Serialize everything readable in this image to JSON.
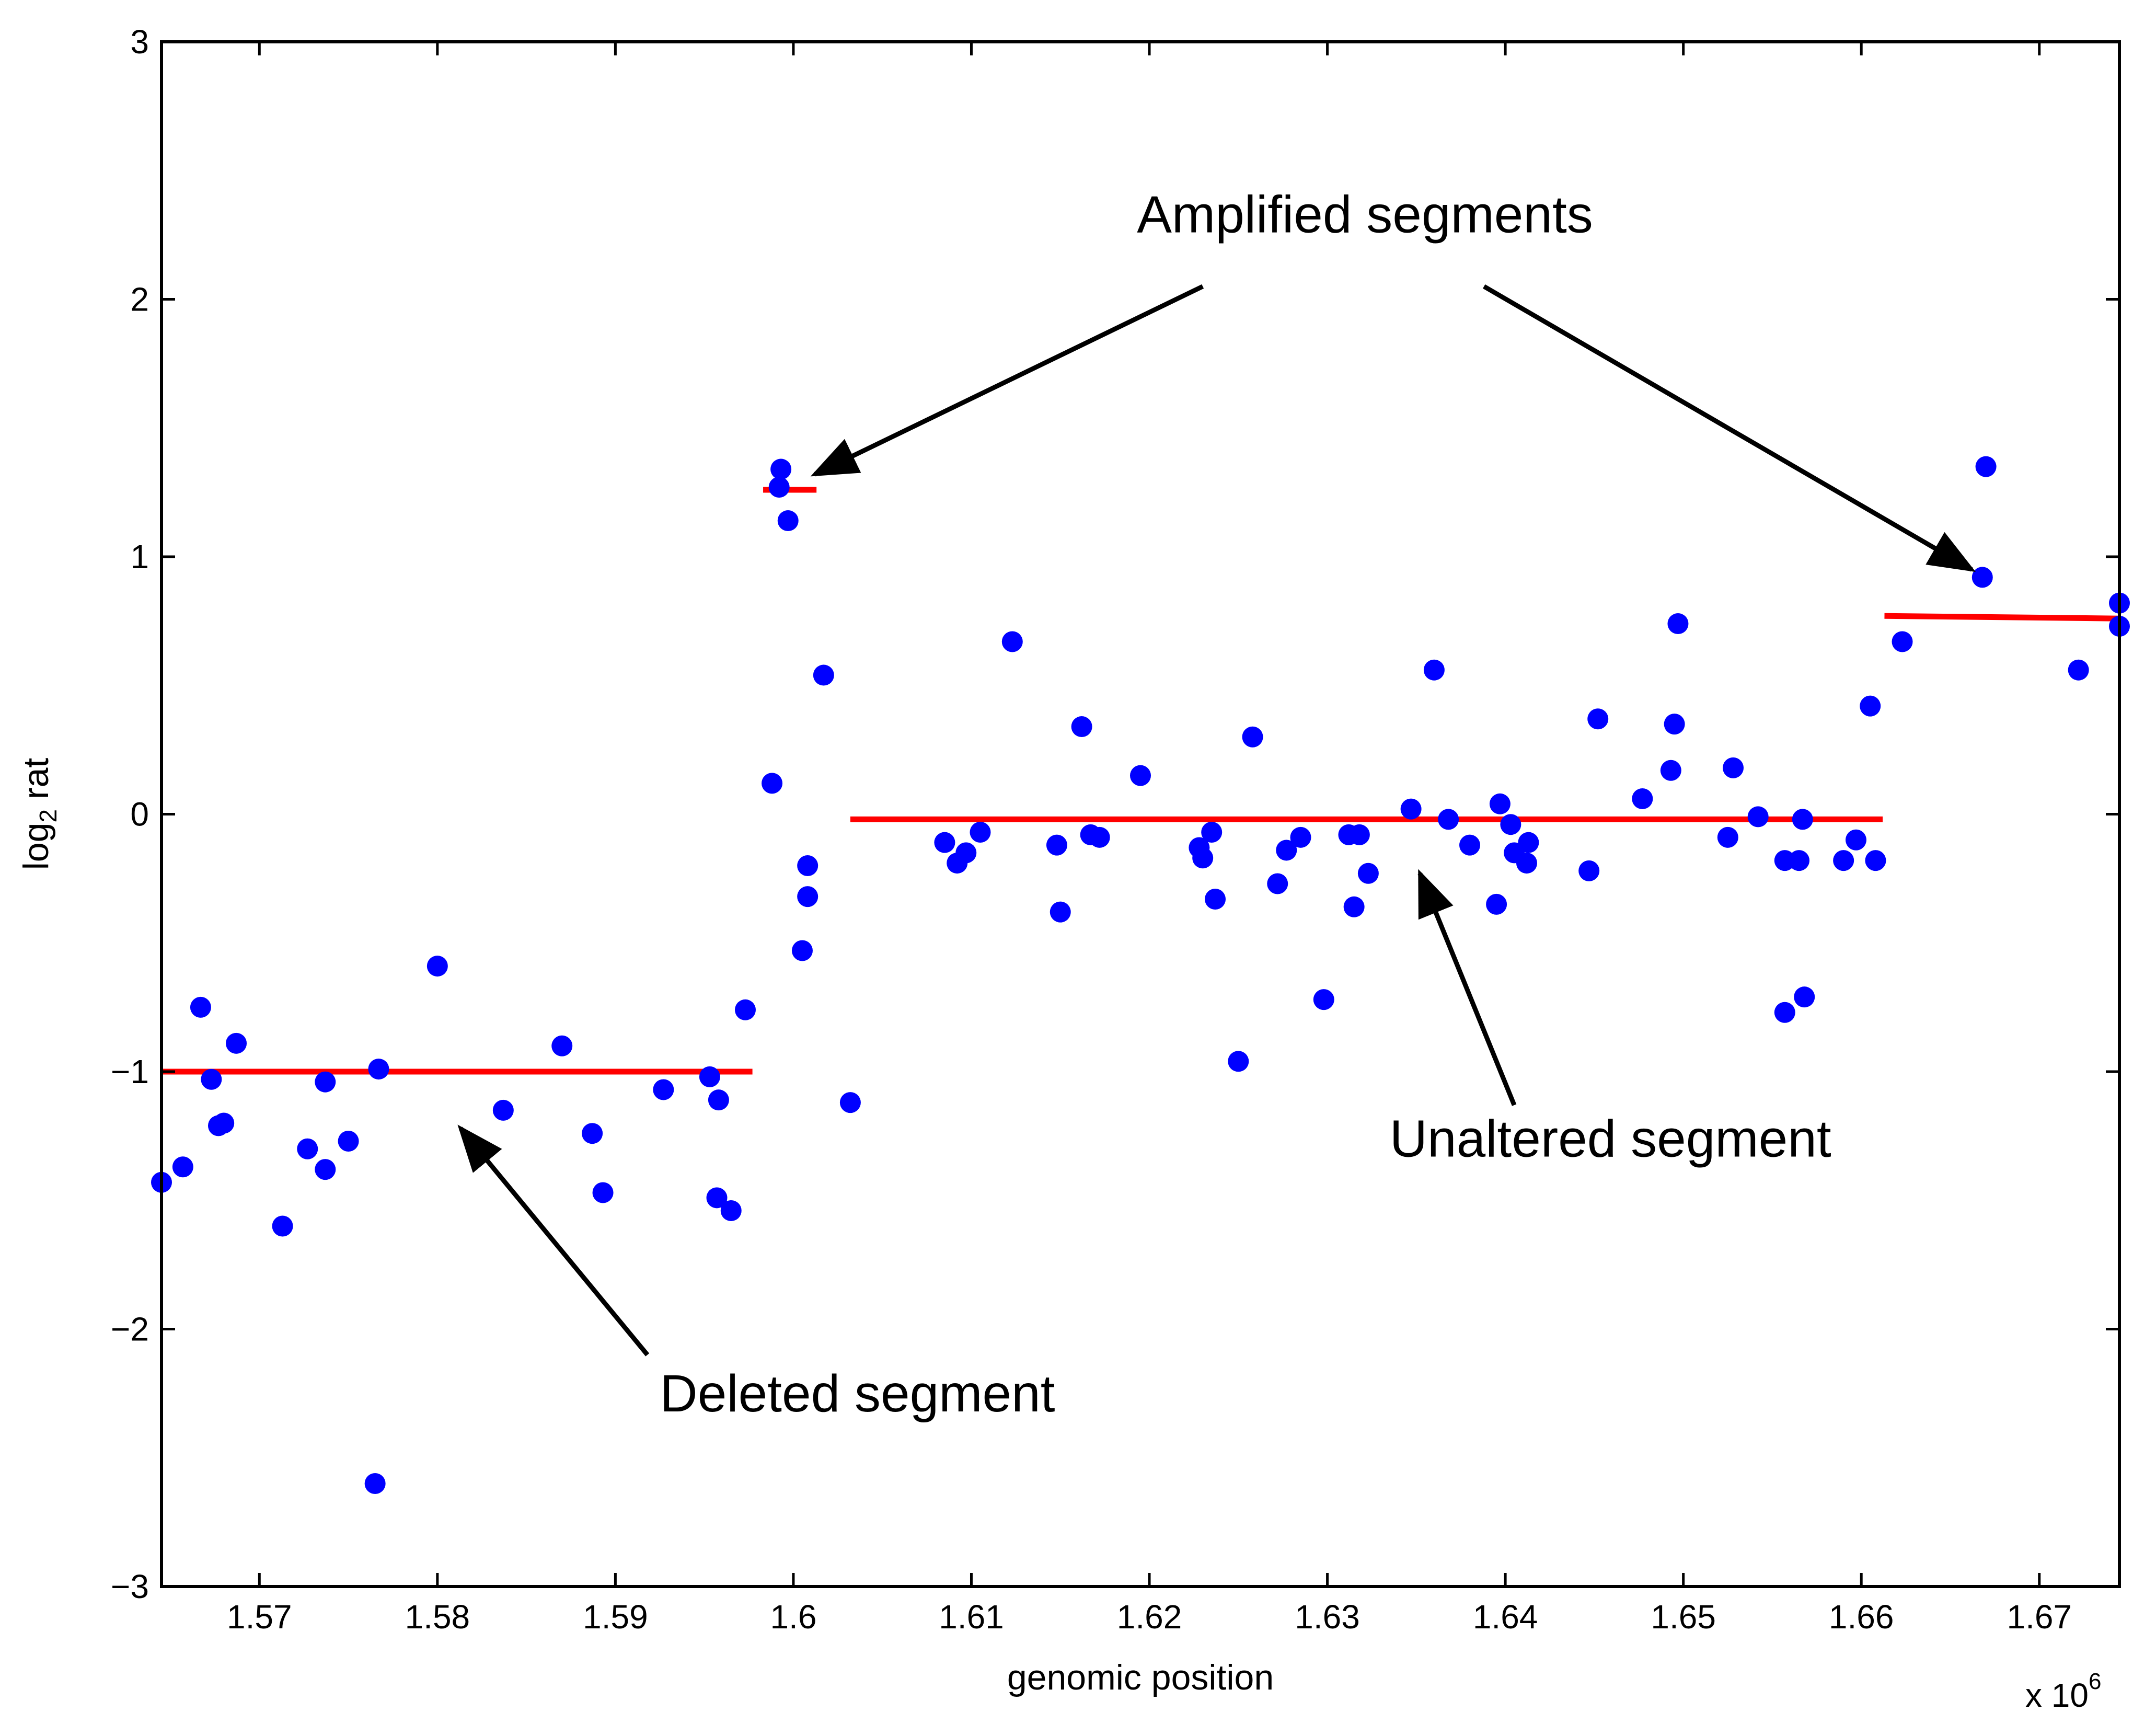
{
  "chart_data": {
    "type": "scatter",
    "title": "",
    "xlabel": "genomic position",
    "ylabel_main": "log",
    "ylabel_sub": "2",
    "ylabel_rest": " rat",
    "x_multiplier_base": "x 10",
    "x_multiplier_exp": "6",
    "xlim": [
      1.5645,
      1.6745
    ],
    "ylim": [
      -3,
      3
    ],
    "x_scale": 1000000,
    "xticks": [
      1.57,
      1.58,
      1.59,
      1.6,
      1.61,
      1.62,
      1.63,
      1.64,
      1.65,
      1.66,
      1.67
    ],
    "xtick_labels": [
      "1.57",
      "1.58",
      "1.59",
      "1.6",
      "1.61",
      "1.62",
      "1.63",
      "1.64",
      "1.65",
      "1.66",
      "1.67"
    ],
    "yticks": [
      -3,
      -2,
      -1,
      0,
      1,
      2,
      3
    ],
    "ytick_labels": [
      "−3",
      "−2",
      "−1",
      "0",
      "1",
      "2",
      "3"
    ],
    "grid": false,
    "point_color": "#0000ff",
    "segment_color": "#ff0000",
    "points": [
      {
        "x": 1.5645,
        "y": -1.43
      },
      {
        "x": 1.5657,
        "y": -1.37
      },
      {
        "x": 1.5667,
        "y": -0.75
      },
      {
        "x": 1.5673,
        "y": -1.03
      },
      {
        "x": 1.5677,
        "y": -1.21
      },
      {
        "x": 1.568,
        "y": -1.2
      },
      {
        "x": 1.5687,
        "y": -0.89
      },
      {
        "x": 1.5713,
        "y": -1.6
      },
      {
        "x": 1.5727,
        "y": -1.3
      },
      {
        "x": 1.5737,
        "y": -1.04
      },
      {
        "x": 1.5737,
        "y": -1.38
      },
      {
        "x": 1.575,
        "y": -1.27
      },
      {
        "x": 1.5765,
        "y": -2.6
      },
      {
        "x": 1.5767,
        "y": -0.99
      },
      {
        "x": 1.58,
        "y": -0.59
      },
      {
        "x": 1.5837,
        "y": -1.15
      },
      {
        "x": 1.587,
        "y": -0.9
      },
      {
        "x": 1.5887,
        "y": -1.24
      },
      {
        "x": 1.5893,
        "y": -1.47
      },
      {
        "x": 1.5927,
        "y": -1.07
      },
      {
        "x": 1.5953,
        "y": -1.02
      },
      {
        "x": 1.5957,
        "y": -1.49
      },
      {
        "x": 1.5958,
        "y": -1.11
      },
      {
        "x": 1.5965,
        "y": -1.54
      },
      {
        "x": 1.5973,
        "y": -0.76
      },
      {
        "x": 1.5988,
        "y": 0.12
      },
      {
        "x": 1.5992,
        "y": 1.27
      },
      {
        "x": 1.5993,
        "y": 1.34
      },
      {
        "x": 1.5997,
        "y": 1.14
      },
      {
        "x": 1.6005,
        "y": -0.53
      },
      {
        "x": 1.6008,
        "y": -0.2
      },
      {
        "x": 1.6008,
        "y": -0.32
      },
      {
        "x": 1.6017,
        "y": 0.54
      },
      {
        "x": 1.6032,
        "y": -1.12
      },
      {
        "x": 1.6085,
        "y": -0.11
      },
      {
        "x": 1.6092,
        "y": -0.19
      },
      {
        "x": 1.6097,
        "y": -0.15
      },
      {
        "x": 1.6105,
        "y": -0.07
      },
      {
        "x": 1.6123,
        "y": 0.67
      },
      {
        "x": 1.6148,
        "y": -0.12
      },
      {
        "x": 1.615,
        "y": -0.38
      },
      {
        "x": 1.6162,
        "y": 0.34
      },
      {
        "x": 1.6167,
        "y": -0.08
      },
      {
        "x": 1.6172,
        "y": -0.09
      },
      {
        "x": 1.6195,
        "y": 0.15
      },
      {
        "x": 1.6228,
        "y": -0.13
      },
      {
        "x": 1.623,
        "y": -0.17
      },
      {
        "x": 1.6235,
        "y": -0.07
      },
      {
        "x": 1.6237,
        "y": -0.33
      },
      {
        "x": 1.625,
        "y": -0.96
      },
      {
        "x": 1.6258,
        "y": 0.3
      },
      {
        "x": 1.6272,
        "y": -0.27
      },
      {
        "x": 1.6277,
        "y": -0.14
      },
      {
        "x": 1.6285,
        "y": -0.09
      },
      {
        "x": 1.6298,
        "y": -0.72
      },
      {
        "x": 1.6312,
        "y": -0.08
      },
      {
        "x": 1.6315,
        "y": -0.36
      },
      {
        "x": 1.6318,
        "y": -0.08
      },
      {
        "x": 1.6323,
        "y": -0.23
      },
      {
        "x": 1.6347,
        "y": 0.02
      },
      {
        "x": 1.636,
        "y": 0.56
      },
      {
        "x": 1.6368,
        "y": -0.02
      },
      {
        "x": 1.638,
        "y": -0.12
      },
      {
        "x": 1.6395,
        "y": -0.35
      },
      {
        "x": 1.6397,
        "y": 0.04
      },
      {
        "x": 1.6403,
        "y": -0.04
      },
      {
        "x": 1.6405,
        "y": -0.15
      },
      {
        "x": 1.6412,
        "y": -0.19
      },
      {
        "x": 1.6413,
        "y": -0.11
      },
      {
        "x": 1.6447,
        "y": -0.22
      },
      {
        "x": 1.6452,
        "y": 0.37
      },
      {
        "x": 1.6477,
        "y": 0.06
      },
      {
        "x": 1.6493,
        "y": 0.17
      },
      {
        "x": 1.6495,
        "y": 0.35
      },
      {
        "x": 1.6497,
        "y": 0.74
      },
      {
        "x": 1.6525,
        "y": -0.09
      },
      {
        "x": 1.6528,
        "y": 0.18
      },
      {
        "x": 1.6542,
        "y": -0.01
      },
      {
        "x": 1.6557,
        "y": -0.77
      },
      {
        "x": 1.6557,
        "y": -0.18
      },
      {
        "x": 1.6565,
        "y": -0.18
      },
      {
        "x": 1.6567,
        "y": -0.02
      },
      {
        "x": 1.6568,
        "y": -0.71
      },
      {
        "x": 1.659,
        "y": -0.18
      },
      {
        "x": 1.6597,
        "y": -0.1
      },
      {
        "x": 1.6605,
        "y": 0.42
      },
      {
        "x": 1.6608,
        "y": -0.18
      },
      {
        "x": 1.6623,
        "y": 0.67
      },
      {
        "x": 1.6668,
        "y": 0.92
      },
      {
        "x": 1.667,
        "y": 1.35
      },
      {
        "x": 1.6722,
        "y": 0.56
      },
      {
        "x": 1.6745,
        "y": 0.73
      },
      {
        "x": 1.6745,
        "y": 0.82
      }
    ],
    "segments": [
      {
        "x1": 1.5645,
        "x2": 1.5977,
        "y1": -1.0,
        "y2": -1.0
      },
      {
        "x1": 1.5983,
        "x2": 1.6013,
        "y1": 1.26,
        "y2": 1.26
      },
      {
        "x1": 1.6032,
        "x2": 1.6612,
        "y1": -0.02,
        "y2": -0.02
      },
      {
        "x1": 1.6613,
        "x2": 1.6745,
        "y1": 0.77,
        "y2": 0.76
      }
    ],
    "annotations": [
      {
        "text": "Amplified segments",
        "tx": 1.6193,
        "ty": 2.26,
        "arrows": [
          {
            "from": [
              1.623,
              2.05
            ],
            "to": [
              1.6012,
              1.32
            ]
          },
          {
            "from": [
              1.6388,
              2.05
            ],
            "to": [
              1.6662,
              0.95
            ]
          }
        ]
      },
      {
        "text": "Unaltered segment",
        "tx": 1.6335,
        "ty": -1.33,
        "arrows": [
          {
            "from": [
              1.6405,
              -1.13
            ],
            "to": [
              1.6352,
              -0.23
            ]
          }
        ]
      },
      {
        "text": "Deleted segment",
        "tx": 1.5925,
        "ty": -2.32,
        "arrows": [
          {
            "from": [
              1.5918,
              -2.1
            ],
            "to": [
              1.5813,
              -1.22
            ]
          }
        ]
      }
    ]
  }
}
